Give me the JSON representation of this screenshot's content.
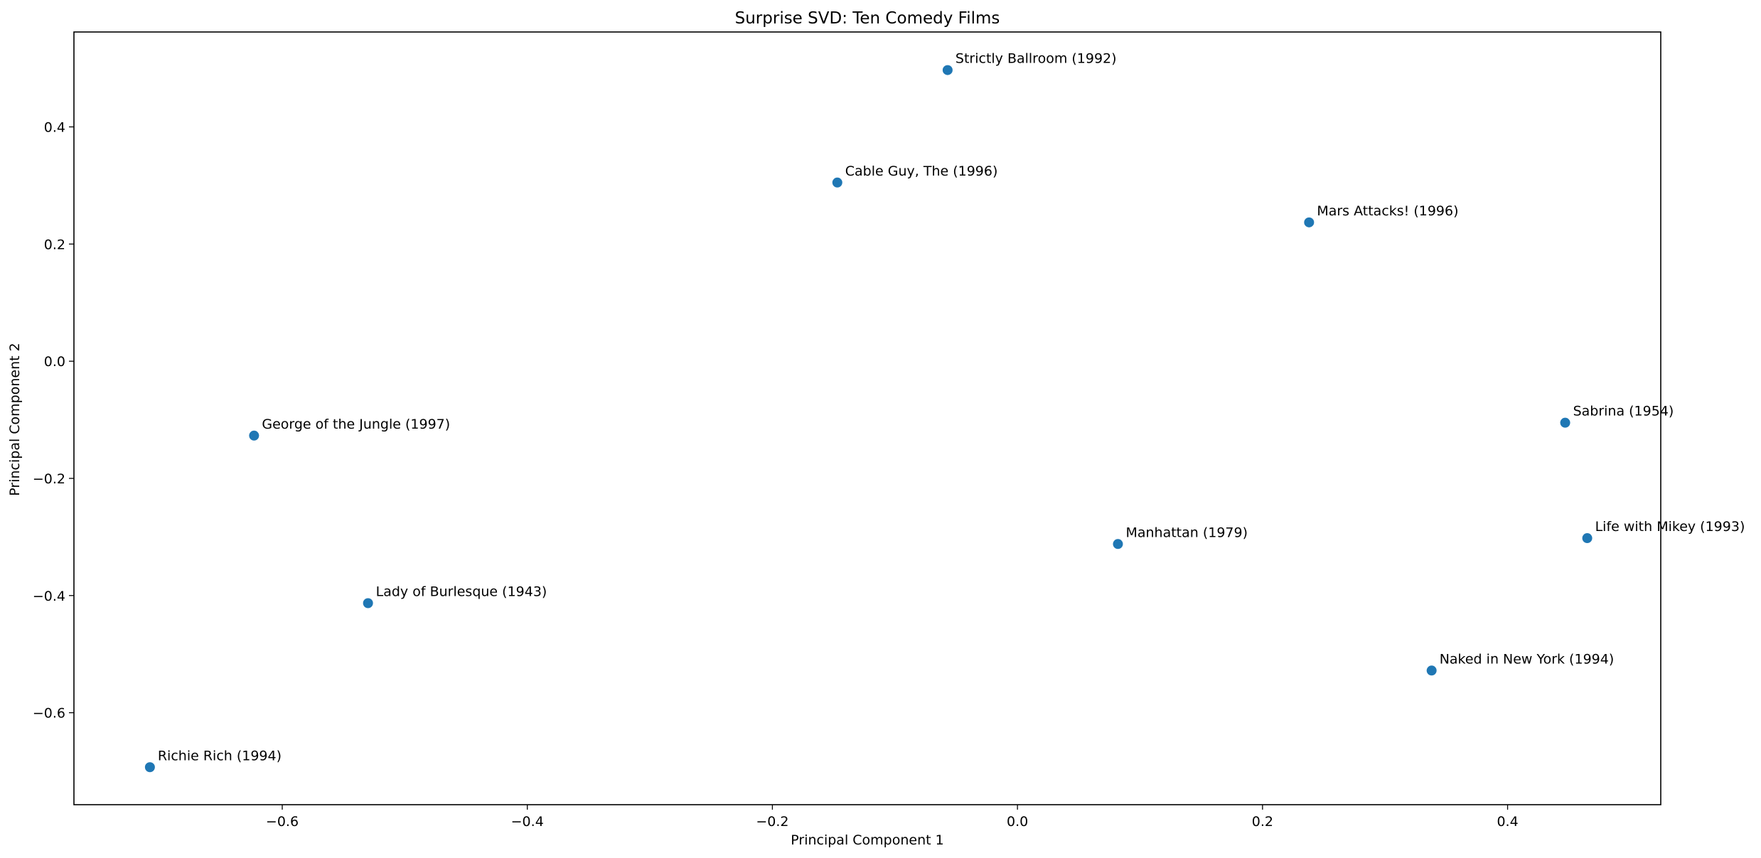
{
  "chart_data": {
    "type": "scatter",
    "title": "Surprise SVD: Ten Comedy Films",
    "xlabel": "Principal Component 1",
    "ylabel": "Principal Component 2",
    "xlim": [
      -0.77,
      0.525
    ],
    "ylim": [
      -0.757,
      0.562
    ],
    "xticks": [
      -0.6,
      -0.4,
      -0.2,
      0.0,
      0.2,
      0.4
    ],
    "xtick_labels": [
      "−0.6",
      "−0.4",
      "−0.2",
      "0.0",
      "0.2",
      "0.4"
    ],
    "yticks": [
      -0.6,
      -0.4,
      -0.2,
      0.0,
      0.2,
      0.4
    ],
    "ytick_labels": [
      "−0.6",
      "−0.4",
      "−0.2",
      "0.0",
      "0.2",
      "0.4"
    ],
    "grid": false,
    "marker_color": "#1f77b4",
    "points": [
      {
        "label": "Strictly Ballroom (1992)",
        "x": -0.057,
        "y": 0.497
      },
      {
        "label": "Cable Guy, The (1996)",
        "x": -0.147,
        "y": 0.305
      },
      {
        "label": "Mars Attacks! (1996)",
        "x": 0.238,
        "y": 0.237
      },
      {
        "label": "George of the Jungle (1997)",
        "x": -0.623,
        "y": -0.127
      },
      {
        "label": "Sabrina (1954)",
        "x": 0.447,
        "y": -0.105
      },
      {
        "label": "Manhattan (1979)",
        "x": 0.082,
        "y": -0.312
      },
      {
        "label": "Life with Mikey (1993)",
        "x": 0.465,
        "y": -0.302
      },
      {
        "label": "Lady of Burlesque (1943)",
        "x": -0.53,
        "y": -0.413
      },
      {
        "label": "Naked in New York (1994)",
        "x": 0.338,
        "y": -0.528
      },
      {
        "label": "Richie Rich (1994)",
        "x": -0.708,
        "y": -0.693
      }
    ]
  }
}
